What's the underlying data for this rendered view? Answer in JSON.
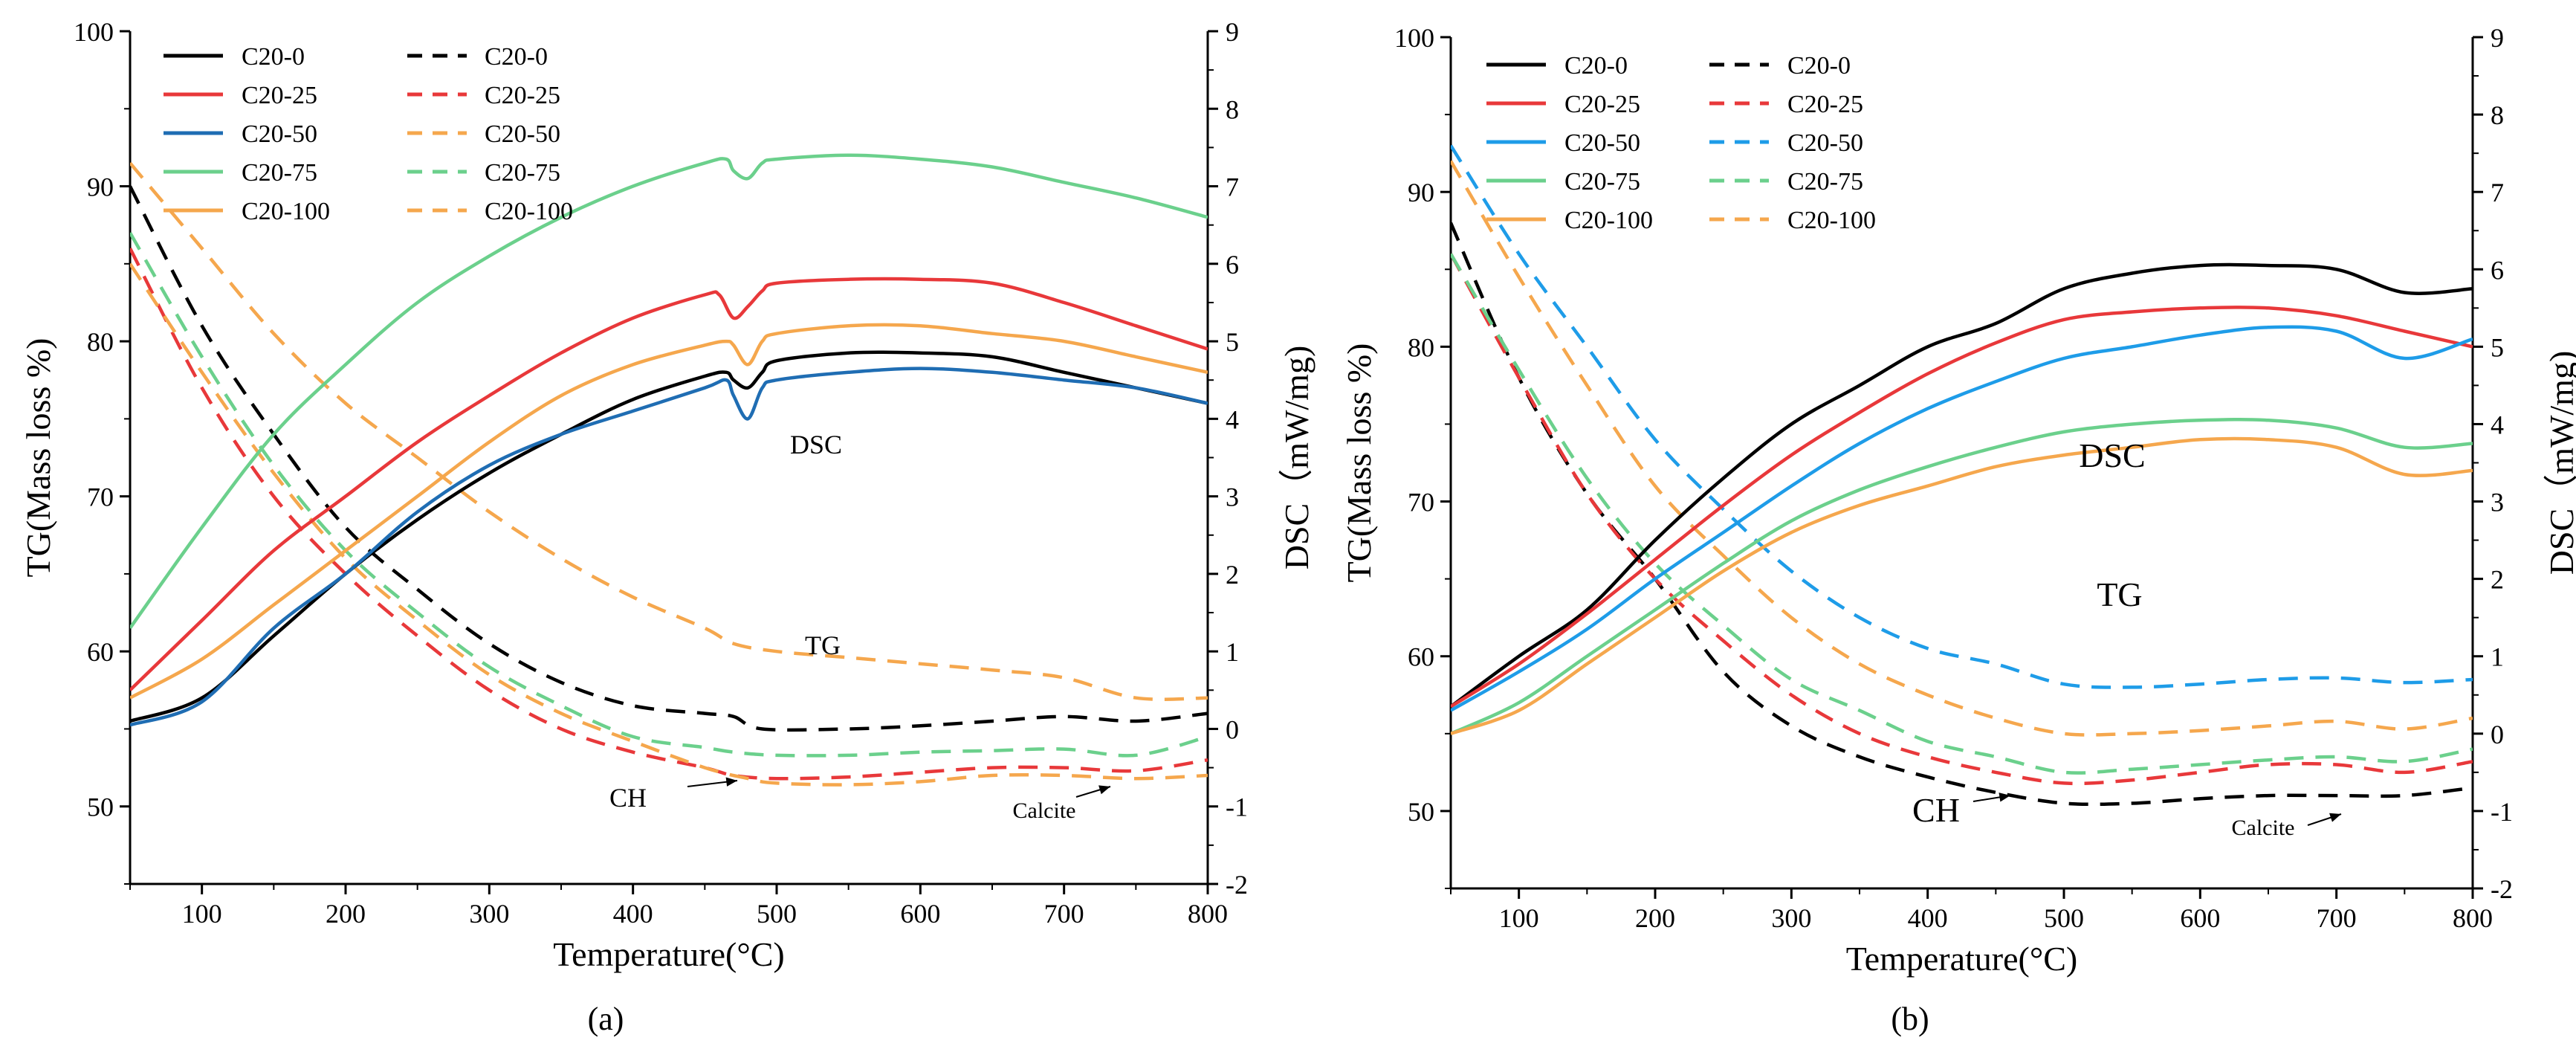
{
  "chart_data": [
    {
      "panel_label": "(a)",
      "type": "line",
      "xlabel": "Temperature(°C)",
      "ylabel_left": "TG(Mass loss %)",
      "ylabel_right": "DSC（mW/mg)",
      "xlim": [
        50,
        800
      ],
      "ylim_left": [
        45,
        100
      ],
      "ylim_right": [
        -2,
        9
      ],
      "xticks": [
        100,
        200,
        300,
        400,
        500,
        600,
        700,
        800
      ],
      "yticks_left": [
        50,
        60,
        70,
        80,
        90,
        100
      ],
      "yticks_right": [
        -2,
        -1,
        0,
        1,
        2,
        3,
        4,
        5,
        6,
        7,
        8,
        9
      ],
      "annotations": [
        "DSC",
        "TG",
        "CH",
        "Calcite"
      ],
      "dsc_series": [
        {
          "name": "C20-0",
          "color": "#000000",
          "x": [
            50,
            100,
            150,
            200,
            250,
            300,
            350,
            400,
            450,
            465,
            470,
            480,
            490,
            500,
            550,
            600,
            650,
            700,
            750,
            800
          ],
          "y": [
            0.1,
            0.4,
            1.2,
            2.0,
            2.7,
            3.3,
            3.8,
            4.25,
            4.55,
            4.6,
            4.5,
            4.4,
            4.6,
            4.75,
            4.85,
            4.85,
            4.8,
            4.6,
            4.4,
            4.2
          ]
        },
        {
          "name": "C20-25",
          "color": "#e8383a",
          "x": [
            50,
            100,
            150,
            200,
            250,
            300,
            350,
            400,
            450,
            460,
            470,
            480,
            490,
            500,
            550,
            600,
            650,
            700,
            750,
            800
          ],
          "y": [
            0.5,
            1.4,
            2.3,
            3.0,
            3.7,
            4.3,
            4.85,
            5.3,
            5.6,
            5.6,
            5.3,
            5.45,
            5.65,
            5.75,
            5.8,
            5.8,
            5.75,
            5.5,
            5.2,
            4.9
          ]
        },
        {
          "name": "C20-50",
          "color": "#1f6db3",
          "x": [
            50,
            100,
            150,
            200,
            250,
            300,
            350,
            400,
            450,
            465,
            470,
            480,
            490,
            500,
            550,
            600,
            650,
            700,
            750,
            800
          ],
          "y": [
            0.05,
            0.35,
            1.3,
            2.0,
            2.8,
            3.4,
            3.8,
            4.1,
            4.4,
            4.5,
            4.3,
            4.0,
            4.4,
            4.5,
            4.6,
            4.65,
            4.6,
            4.5,
            4.4,
            4.2
          ]
        },
        {
          "name": "C20-75",
          "color": "#6bd08c",
          "x": [
            50,
            100,
            150,
            200,
            250,
            300,
            350,
            400,
            450,
            465,
            470,
            480,
            490,
            500,
            550,
            600,
            650,
            700,
            750,
            800
          ],
          "y": [
            1.3,
            2.6,
            3.8,
            4.7,
            5.5,
            6.1,
            6.6,
            7.0,
            7.3,
            7.35,
            7.2,
            7.1,
            7.3,
            7.35,
            7.4,
            7.35,
            7.25,
            7.05,
            6.85,
            6.6
          ]
        },
        {
          "name": "C20-100",
          "color": "#f5a74d",
          "x": [
            50,
            100,
            150,
            200,
            250,
            300,
            350,
            400,
            450,
            465,
            470,
            480,
            490,
            500,
            550,
            600,
            650,
            700,
            750,
            800
          ],
          "y": [
            0.4,
            0.9,
            1.6,
            2.3,
            3.0,
            3.7,
            4.3,
            4.7,
            4.95,
            5.0,
            4.95,
            4.7,
            5.0,
            5.1,
            5.2,
            5.2,
            5.1,
            5.0,
            4.8,
            4.6
          ]
        }
      ],
      "tg_series": [
        {
          "name": "C20-0",
          "color": "#000000",
          "x": [
            50,
            100,
            150,
            200,
            250,
            300,
            350,
            400,
            450,
            470,
            490,
            550,
            600,
            650,
            700,
            750,
            800
          ],
          "y": [
            90,
            81,
            74,
            68,
            64,
            60.5,
            58,
            56.5,
            56,
            55.8,
            55,
            55,
            55.2,
            55.5,
            55.8,
            55.5,
            56
          ]
        },
        {
          "name": "C20-25",
          "color": "#e8383a",
          "x": [
            50,
            100,
            150,
            200,
            250,
            300,
            350,
            400,
            450,
            470,
            500,
            550,
            600,
            650,
            700,
            750,
            800
          ],
          "y": [
            86,
            77,
            70,
            65,
            61,
            57.5,
            55,
            53.5,
            52.5,
            52,
            51.8,
            51.9,
            52.2,
            52.5,
            52.5,
            52.3,
            53
          ]
        },
        {
          "name": "C20-50",
          "color": "#f5a74d",
          "x": [
            50,
            100,
            150,
            200,
            250,
            300,
            350,
            400,
            450,
            470,
            500,
            550,
            600,
            650,
            700,
            750,
            800
          ],
          "y": [
            91.5,
            86,
            80.5,
            76,
            72.5,
            69,
            66,
            63.5,
            61.5,
            60.5,
            60,
            59.6,
            59.2,
            58.8,
            58.3,
            57,
            57
          ]
        },
        {
          "name": "C20-75",
          "color": "#6bd08c",
          "x": [
            50,
            100,
            150,
            200,
            250,
            300,
            350,
            400,
            450,
            470,
            500,
            550,
            600,
            650,
            700,
            750,
            800
          ],
          "y": [
            87,
            79,
            72,
            66.5,
            62.5,
            59,
            56.5,
            54.5,
            53.8,
            53.5,
            53.3,
            53.3,
            53.5,
            53.6,
            53.7,
            53.3,
            54.5
          ]
        },
        {
          "name": "C20-100",
          "color": "#f5a74d",
          "x": [
            50,
            100,
            150,
            200,
            250,
            300,
            350,
            400,
            450,
            480,
            500,
            550,
            600,
            650,
            700,
            750,
            800
          ],
          "y": [
            85,
            78,
            71.5,
            66,
            62,
            58.5,
            56,
            54.2,
            52.5,
            51.8,
            51.5,
            51.4,
            51.6,
            52,
            52,
            51.8,
            52
          ]
        }
      ],
      "legend": {
        "placement": "top-left",
        "solid_label": [
          "C20-0",
          "C20-25",
          "C20-50",
          "C20-75",
          "C20-100"
        ],
        "dashed_label": [
          "C20-0",
          "C20-25",
          "C20-50",
          "C20-75",
          "C20-100"
        ]
      }
    },
    {
      "panel_label": "(b)",
      "type": "line",
      "xlabel": "Temperature(°C)",
      "ylabel_left": "TG(Mass loss %)",
      "ylabel_right": "DSC（mW/mg)",
      "xlim": [
        50,
        800
      ],
      "ylim_left": [
        45,
        100
      ],
      "ylim_right": [
        -2,
        9
      ],
      "xticks": [
        100,
        200,
        300,
        400,
        500,
        600,
        700,
        800
      ],
      "yticks_left": [
        50,
        60,
        70,
        80,
        90,
        100
      ],
      "yticks_right": [
        -2,
        -1,
        0,
        1,
        2,
        3,
        4,
        5,
        6,
        7,
        8,
        9
      ],
      "annotations": [
        "DSC",
        "TG",
        "CH",
        "Calcite"
      ],
      "dsc_series": [
        {
          "name": "C20-0",
          "color": "#000000",
          "x": [
            50,
            100,
            150,
            200,
            250,
            300,
            350,
            400,
            450,
            500,
            550,
            600,
            650,
            700,
            750,
            800
          ],
          "y": [
            0.35,
            1.0,
            1.6,
            2.5,
            3.3,
            4.0,
            4.5,
            5.0,
            5.3,
            5.75,
            5.95,
            6.05,
            6.05,
            6.0,
            5.7,
            5.75
          ]
        },
        {
          "name": "C20-25",
          "color": "#e8383a",
          "x": [
            50,
            100,
            150,
            200,
            250,
            300,
            350,
            400,
            450,
            500,
            550,
            600,
            650,
            700,
            750,
            800
          ],
          "y": [
            0.35,
            0.9,
            1.55,
            2.25,
            2.95,
            3.6,
            4.15,
            4.65,
            5.05,
            5.35,
            5.45,
            5.5,
            5.5,
            5.4,
            5.2,
            5.0
          ]
        },
        {
          "name": "C20-50",
          "color": "#1e9ce8",
          "x": [
            50,
            100,
            150,
            200,
            250,
            300,
            350,
            400,
            450,
            500,
            550,
            600,
            650,
            700,
            750,
            800
          ],
          "y": [
            0.3,
            0.8,
            1.35,
            2.0,
            2.6,
            3.2,
            3.75,
            4.2,
            4.55,
            4.85,
            5.0,
            5.15,
            5.25,
            5.2,
            4.85,
            5.1
          ]
        },
        {
          "name": "C20-75",
          "color": "#6bd08c",
          "x": [
            50,
            100,
            150,
            200,
            250,
            300,
            350,
            400,
            450,
            500,
            550,
            600,
            650,
            700,
            750,
            800
          ],
          "y": [
            0.0,
            0.4,
            1.0,
            1.6,
            2.2,
            2.75,
            3.15,
            3.45,
            3.7,
            3.9,
            4.0,
            4.05,
            4.05,
            3.95,
            3.7,
            3.75
          ]
        },
        {
          "name": "C20-100",
          "color": "#f5a74d",
          "x": [
            50,
            100,
            150,
            200,
            250,
            300,
            350,
            400,
            450,
            500,
            550,
            600,
            650,
            700,
            750,
            800
          ],
          "y": [
            0.0,
            0.3,
            0.9,
            1.5,
            2.1,
            2.6,
            2.95,
            3.2,
            3.45,
            3.6,
            3.7,
            3.8,
            3.8,
            3.7,
            3.35,
            3.4
          ]
        }
      ],
      "tg_series": [
        {
          "name": "C20-0",
          "color": "#000000",
          "x": [
            50,
            100,
            150,
            200,
            250,
            300,
            350,
            400,
            450,
            500,
            550,
            600,
            650,
            700,
            750,
            800
          ],
          "y": [
            88,
            78,
            70.5,
            65,
            59,
            55.5,
            53.5,
            52.2,
            51.2,
            50.5,
            50.5,
            50.8,
            51,
            51,
            51,
            51.5
          ]
        },
        {
          "name": "C20-25",
          "color": "#e8383a",
          "x": [
            50,
            100,
            150,
            200,
            250,
            300,
            350,
            400,
            450,
            500,
            550,
            600,
            650,
            700,
            750,
            800
          ],
          "y": [
            86,
            78,
            70.5,
            65,
            61,
            57.5,
            55,
            53.5,
            52.5,
            51.8,
            52,
            52.5,
            53,
            53,
            52.5,
            53.2
          ]
        },
        {
          "name": "C20-50",
          "color": "#1e9ce8",
          "x": [
            50,
            100,
            150,
            200,
            250,
            300,
            350,
            400,
            450,
            500,
            550,
            600,
            650,
            700,
            750,
            800
          ],
          "y": [
            93,
            86,
            80,
            74,
            69.5,
            65.5,
            62.5,
            60.5,
            59.5,
            58.2,
            58,
            58.2,
            58.5,
            58.6,
            58.3,
            58.5
          ]
        },
        {
          "name": "C20-75",
          "color": "#6bd08c",
          "x": [
            50,
            100,
            150,
            200,
            250,
            300,
            350,
            400,
            450,
            500,
            550,
            600,
            650,
            700,
            750,
            800
          ],
          "y": [
            86,
            78.5,
            71.5,
            66,
            62,
            58.5,
            56.5,
            54.5,
            53.5,
            52.5,
            52.7,
            53,
            53.3,
            53.5,
            53.2,
            54
          ]
        },
        {
          "name": "C20-100",
          "color": "#f5a74d",
          "x": [
            50,
            100,
            150,
            200,
            250,
            300,
            350,
            400,
            450,
            500,
            550,
            600,
            650,
            700,
            750,
            800
          ],
          "y": [
            92,
            84.5,
            77.5,
            71,
            66.5,
            62.5,
            59.5,
            57.5,
            56,
            55,
            55,
            55.2,
            55.5,
            55.8,
            55.3,
            56
          ]
        }
      ],
      "legend": {
        "placement": "top-left",
        "solid_label": [
          "C20-0",
          "C20-25",
          "C20-50",
          "C20-75",
          "C20-100"
        ],
        "dashed_label": [
          "C20-0",
          "C20-25",
          "C20-50",
          "C20-75",
          "C20-100"
        ]
      }
    }
  ]
}
